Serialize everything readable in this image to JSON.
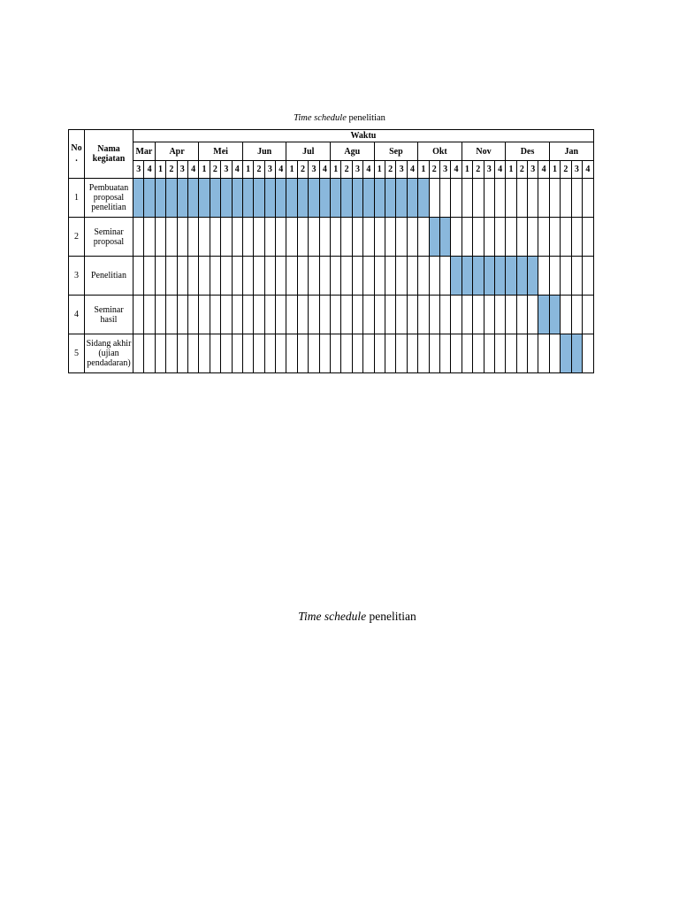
{
  "caption": {
    "italic": "Time schedule",
    "rest": " penelitian"
  },
  "bottom_caption": {
    "italic": "Time schedule",
    "rest": " penelitian"
  },
  "table": {
    "no_header": "No .",
    "name_header": "Nama kegiatan",
    "waktu_header": "Waktu",
    "months": [
      {
        "label": "Mar",
        "weeks": [
          "3",
          "4"
        ]
      },
      {
        "label": "Apr",
        "weeks": [
          "1",
          "2",
          "3",
          "4"
        ]
      },
      {
        "label": "Mei",
        "weeks": [
          "1",
          "2",
          "3",
          "4"
        ]
      },
      {
        "label": "Jun",
        "weeks": [
          "1",
          "2",
          "3",
          "4"
        ]
      },
      {
        "label": "Jul",
        "weeks": [
          "1",
          "2",
          "3",
          "4"
        ]
      },
      {
        "label": "Agu",
        "weeks": [
          "1",
          "2",
          "3",
          "4"
        ]
      },
      {
        "label": "Sep",
        "weeks": [
          "1",
          "2",
          "3",
          "4"
        ]
      },
      {
        "label": "Okt",
        "weeks": [
          "1",
          "2",
          "3",
          "4"
        ]
      },
      {
        "label": "Nov",
        "weeks": [
          "1",
          "2",
          "3",
          "4"
        ]
      },
      {
        "label": "Des",
        "weeks": [
          "1",
          "2",
          "3",
          "4"
        ]
      },
      {
        "label": "Jan",
        "weeks": [
          "1",
          "2",
          "3",
          "4"
        ]
      }
    ],
    "fill_color": "#8ab8dc",
    "activities": [
      {
        "no": "1",
        "name": "Pembuatan proposal penelitian",
        "start_week": 0,
        "end_week": 26
      },
      {
        "no": "2",
        "name": "Seminar proposal",
        "start_week": 27,
        "end_week": 28
      },
      {
        "no": "3",
        "name": "Penelitian",
        "start_week": 29,
        "end_week": 36
      },
      {
        "no": "4",
        "name": "Seminar hasil",
        "start_week": 37,
        "end_week": 38
      },
      {
        "no": "5",
        "name": "Sidang akhir (ujian pendadaran)",
        "start_week": 39,
        "end_week": 40
      }
    ]
  }
}
